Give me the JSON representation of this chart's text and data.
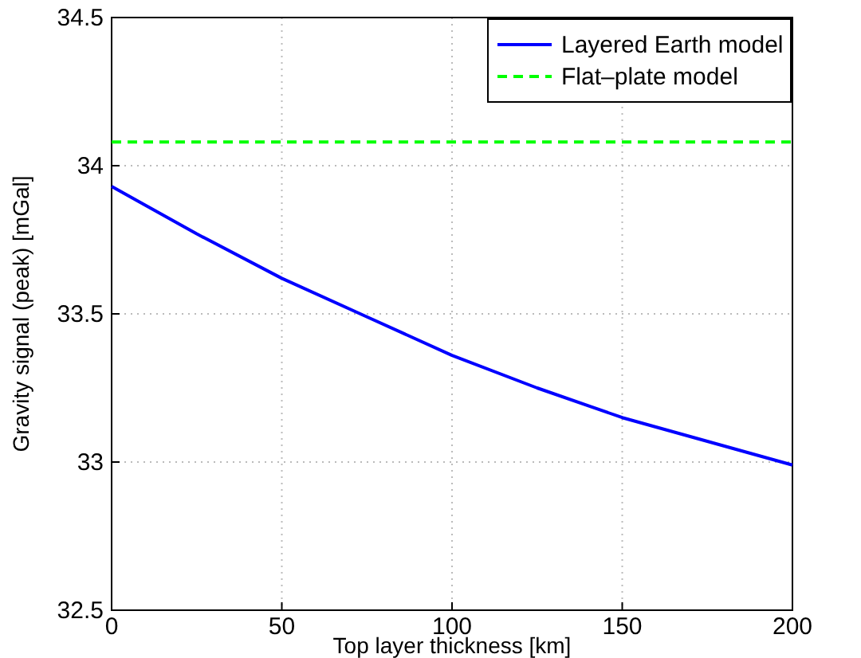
{
  "chart_data": {
    "type": "line",
    "xlabel": "Top layer thickness [km]",
    "ylabel": "Gravity signal (peak) [mGal]",
    "xlim": [
      0,
      200
    ],
    "xticks": [
      0,
      50,
      100,
      150,
      200
    ],
    "ylim": [
      32.5,
      34.5
    ],
    "yticks": [
      32.5,
      33,
      33.5,
      34,
      34.5
    ],
    "grid": true,
    "legend": "top right",
    "marker": "none",
    "series": [
      {
        "name": "Layered Earth model",
        "color": "#0000ff",
        "line_style": "solid",
        "x": [
          0,
          25,
          50,
          75,
          100,
          125,
          150,
          175,
          200
        ],
        "values": [
          33.93,
          33.77,
          33.62,
          33.49,
          33.36,
          33.25,
          33.15,
          33.07,
          32.99
        ]
      },
      {
        "name": "Flat–plate model",
        "color": "#00ff00",
        "line_style": "dashed",
        "x": [
          0,
          200
        ],
        "values": [
          34.08,
          34.08
        ]
      }
    ]
  }
}
